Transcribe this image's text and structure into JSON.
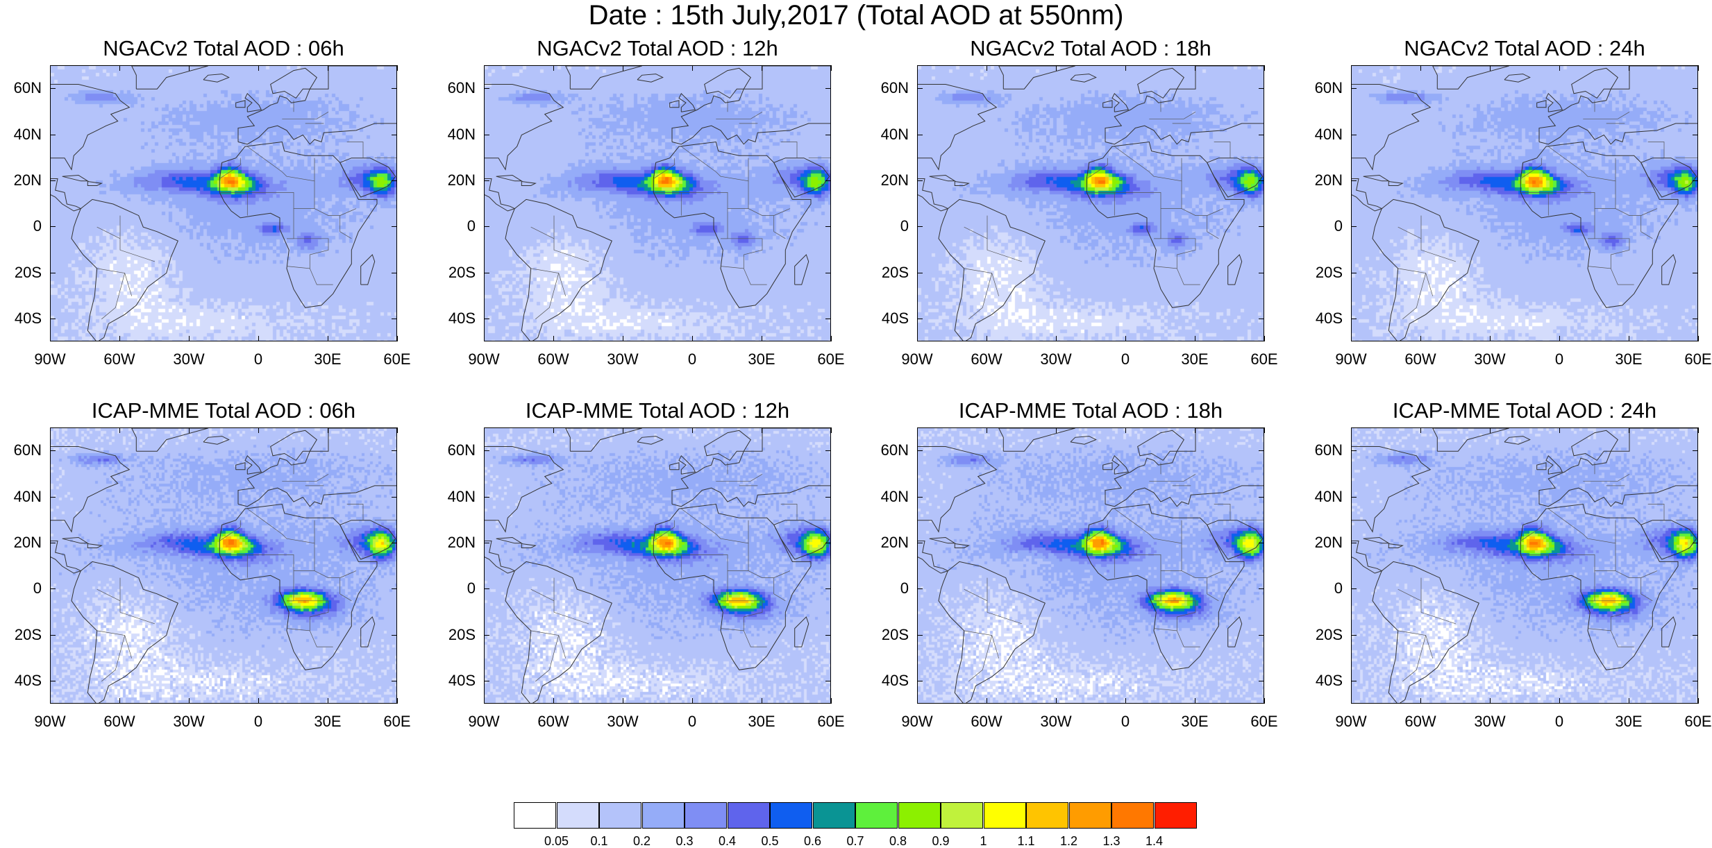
{
  "title": "Date : 15th July,2017 (Total AOD at 550nm)",
  "panels": [
    {
      "id": "ngac-06",
      "title": "NGACv2 Total AOD : 06h",
      "model": "ngac",
      "seed": 11
    },
    {
      "id": "ngac-12",
      "title": "NGACv2 Total AOD : 12h",
      "model": "ngac",
      "seed": 12
    },
    {
      "id": "ngac-18",
      "title": "NGACv2 Total AOD : 18h",
      "model": "ngac",
      "seed": 13
    },
    {
      "id": "ngac-24",
      "title": "NGACv2 Total AOD : 24h",
      "model": "ngac",
      "seed": 14
    },
    {
      "id": "icap-06",
      "title": "ICAP-MME Total AOD : 06h",
      "model": "icap",
      "seed": 21
    },
    {
      "id": "icap-12",
      "title": "ICAP-MME Total AOD : 12h",
      "model": "icap",
      "seed": 22
    },
    {
      "id": "icap-18",
      "title": "ICAP-MME Total AOD : 18h",
      "model": "icap",
      "seed": 23
    },
    {
      "id": "icap-24",
      "title": "ICAP-MME Total AOD : 24h",
      "model": "icap",
      "seed": 24
    }
  ],
  "lat_labels": [
    "60N",
    "40N",
    "20N",
    "0",
    "20S",
    "40S"
  ],
  "lon_labels": [
    "90W",
    "60W",
    "30W",
    "0",
    "30E",
    "60E"
  ],
  "map_extent": {
    "lon_min": -90,
    "lon_max": 60,
    "lat_min": -50,
    "lat_max": 70
  },
  "lat_values": [
    60,
    40,
    20,
    0,
    -20,
    -40
  ],
  "lon_values": [
    -90,
    -60,
    -30,
    0,
    30,
    60
  ],
  "colorbar": {
    "labels": [
      "0.05",
      "0.1",
      "0.2",
      "0.3",
      "0.4",
      "0.5",
      "0.6",
      "0.7",
      "0.8",
      "0.9",
      "1",
      "1.1",
      "1.2",
      "1.3",
      "1.4"
    ],
    "thresholds": [
      0.05,
      0.1,
      0.2,
      0.3,
      0.4,
      0.5,
      0.6,
      0.7,
      0.8,
      0.9,
      1.0,
      1.1,
      1.2,
      1.3,
      1.4
    ],
    "colors": [
      "#ffffff",
      "#d4dcfc",
      "#b4c3fa",
      "#95acf8",
      "#7f8ef4",
      "#5f64ec",
      "#0f5ef0",
      "#0a9494",
      "#5ef03c",
      "#8cf000",
      "#c0f23c",
      "#ffff00",
      "#ffc400",
      "#ff9c00",
      "#ff7800",
      "#ff1e00"
    ]
  }
}
